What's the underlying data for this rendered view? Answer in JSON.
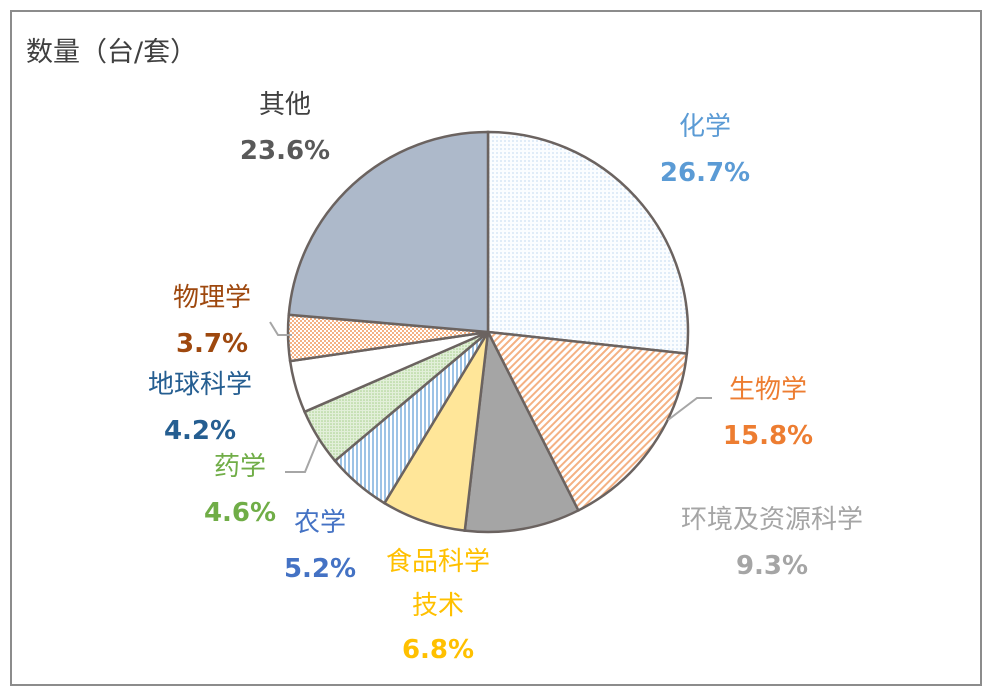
{
  "chart_data": {
    "type": "pie",
    "title": "数量（台/套）",
    "start": "top",
    "direction": "clockwise",
    "slices": [
      {
        "label": "化学",
        "value": 26.7,
        "display": "26.7%",
        "fill": "#f3f8fd",
        "label_color": "#5b9bd5"
      },
      {
        "label": "生物学",
        "value": 15.8,
        "display": "15.8%",
        "fill": "#f8cbad",
        "label_color": "#ed7d31"
      },
      {
        "label": "环境及资源科学",
        "value": 9.3,
        "display": "9.3%",
        "fill": "#a5a5a5",
        "label_color": "#a5a5a5"
      },
      {
        "label": "食品科学技术",
        "value": 6.8,
        "display": "6.8%",
        "fill": "#ffe699",
        "label_color": "#ffc000"
      },
      {
        "label": "农学",
        "value": 5.2,
        "display": "5.2%",
        "fill": "#bdd7ee",
        "label_color": "#4472c4"
      },
      {
        "label": "药学",
        "value": 4.6,
        "display": "4.6%",
        "fill": "#c5e0b4",
        "label_color": "#70ad47"
      },
      {
        "label": "地球科学",
        "value": 4.2,
        "display": "4.2%",
        "fill": "#ffffff",
        "label_color": "#255e91"
      },
      {
        "label": "物理学",
        "value": 3.7,
        "display": "3.7%",
        "fill": "#f8cbad",
        "label_color": "#9e480e"
      },
      {
        "label": "其他",
        "value": 23.6,
        "display": "23.6%",
        "fill": "#adb9ca",
        "label_color": "#44546a"
      }
    ]
  }
}
